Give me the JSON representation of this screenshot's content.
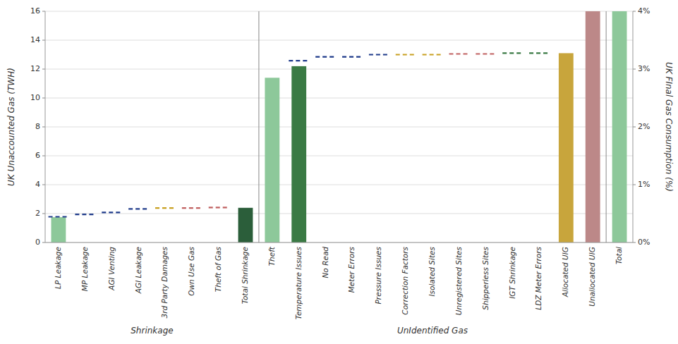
{
  "chart_data": {
    "type": "bar",
    "categories": [
      "LP Leakage",
      "MP Leakage",
      "AGI Venting",
      "AGI Leakage",
      "3rd Party Damages",
      "Own Use Gas",
      "Theft of Gas",
      "Total Shrinkage",
      "Theft",
      "Temperature Issues",
      "No Read",
      "Meter Errors",
      "Pressure Issues",
      "Correction Factors",
      "Isolated Sites",
      "Unregistered Sites",
      "Shipperless Sites",
      "IGT Shrinkage",
      "LDZ Meter Errors",
      "Allocated UIG",
      "Unallocated UIG",
      "Total"
    ],
    "series": [
      {
        "type": "bar",
        "values": [
          1.75,
          0,
          0,
          0,
          0,
          0,
          0,
          2.4,
          11.4,
          12.2,
          0,
          0,
          0,
          0,
          0,
          0,
          0,
          0,
          0,
          13.1,
          16.0,
          16.0
        ],
        "colors": [
          "#8DC89A",
          "none",
          "none",
          "none",
          "none",
          "none",
          "none",
          "#2B5E3A",
          "#8DC89A",
          "#3A7A44",
          "none",
          "none",
          "none",
          "none",
          "none",
          "none",
          "none",
          "none",
          "none",
          "#C8A53C",
          "#BC8888",
          "#8DC89A"
        ]
      },
      {
        "type": "dash",
        "line_style": "dashed",
        "values": [
          1.78,
          1.95,
          2.08,
          2.32,
          2.38,
          2.38,
          2.42,
          null,
          null,
          12.58,
          12.85,
          12.85,
          13.0,
          13.0,
          13.0,
          13.05,
          13.05,
          13.1,
          13.1,
          null,
          null,
          null
        ],
        "colors": [
          "#1E3A8A",
          "#1E3A8A",
          "#1E3A8A",
          "#1E3A8A",
          "#C8A020",
          "#C06060",
          "#C06060",
          null,
          null,
          "#1E3A8A",
          "#1E3A8A",
          "#1E3A8A",
          "#1E3A8A",
          "#C8A020",
          "#C8A020",
          "#C06060",
          "#C06060",
          "#3A7A44",
          "#3A7A44",
          null,
          null,
          null
        ]
      }
    ],
    "groups": [
      {
        "label": "Shrinkage",
        "count": 8
      },
      {
        "label": "UnIdentified Gas",
        "count": 13
      }
    ],
    "ylabel": "UK Unaccounted Gas (TWH)",
    "y2label": "UK FInal Gas Consumption (%)",
    "ylim": [
      0,
      16
    ],
    "yticks": [
      0,
      2,
      4,
      6,
      8,
      10,
      12,
      14,
      16
    ],
    "y2lim": [
      0,
      4
    ],
    "y2ticks": [
      {
        "value": 0,
        "label": "0%"
      },
      {
        "value": 1,
        "label": "1%"
      },
      {
        "value": 2,
        "label": "2%"
      },
      {
        "value": 3,
        "label": "3%"
      },
      {
        "value": 4,
        "label": "4%"
      }
    ],
    "grid": true
  }
}
